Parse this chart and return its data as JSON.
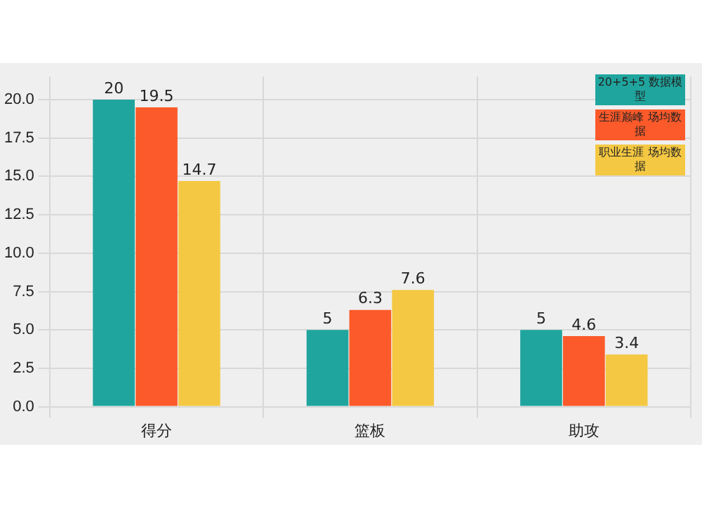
{
  "chart_data": {
    "type": "bar",
    "categories": [
      "得分",
      "篮板",
      "助攻"
    ],
    "series": [
      {
        "name": "20+5+5 数据模型",
        "color": "#1fa59e",
        "values": [
          20,
          5,
          5
        ]
      },
      {
        "name": "生涯巅峰 场均数据",
        "color": "#fc5a2a",
        "values": [
          19.5,
          6.3,
          4.6
        ]
      },
      {
        "name": "职业生涯 场均数据",
        "color": "#f4c842",
        "values": [
          14.7,
          7.6,
          3.4
        ]
      }
    ],
    "ylim": [
      0,
      21.5
    ],
    "yticks": [
      {
        "value": 0,
        "label": "0.0"
      },
      {
        "value": 2.5,
        "label": "2.5"
      },
      {
        "value": 5,
        "label": "5.0"
      },
      {
        "value": 7.5,
        "label": "7.5"
      },
      {
        "value": 10,
        "label": "10.0"
      },
      {
        "value": 12.5,
        "label": "12.5"
      },
      {
        "value": 15,
        "label": "15.0"
      },
      {
        "value": 17.5,
        "label": "17.5"
      },
      {
        "value": 20,
        "label": "20.0"
      }
    ],
    "grid": true,
    "legend": "top right",
    "data_labels": true
  }
}
